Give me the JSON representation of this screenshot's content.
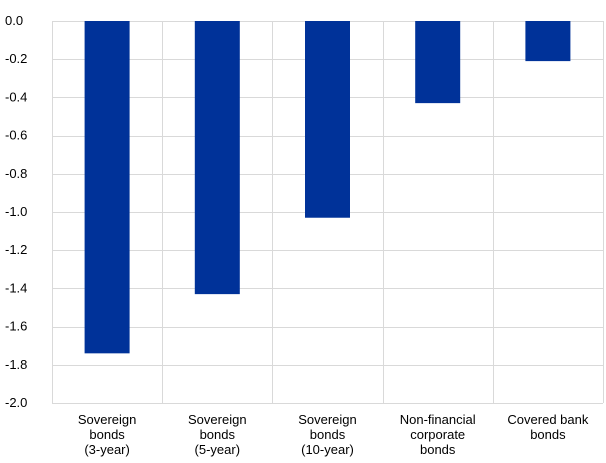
{
  "chart_data": {
    "type": "bar",
    "categories": [
      [
        "Sovereign",
        "bonds",
        "(3-year)"
      ],
      [
        "Sovereign",
        "bonds",
        "(5-year)"
      ],
      [
        "Sovereign",
        "bonds",
        "(10-year)"
      ],
      [
        "Non-financial",
        "corporate",
        "bonds"
      ],
      [
        "Covered bank",
        "bonds"
      ]
    ],
    "values": [
      -1.74,
      -1.43,
      -1.03,
      -0.43,
      -0.21
    ],
    "ylim": [
      -2.0,
      0.0
    ],
    "yticks": [
      "0.0",
      "-0.2",
      "-0.4",
      "-0.6",
      "-0.8",
      "-1.0",
      "-1.2",
      "-1.4",
      "-1.6",
      "-1.8",
      "-2.0"
    ],
    "grid": "horizontal and vertical",
    "legend": "none",
    "bar_color": "#003299",
    "grid_color": "#d9d9d9",
    "title": "",
    "xlabel": "",
    "ylabel": ""
  }
}
